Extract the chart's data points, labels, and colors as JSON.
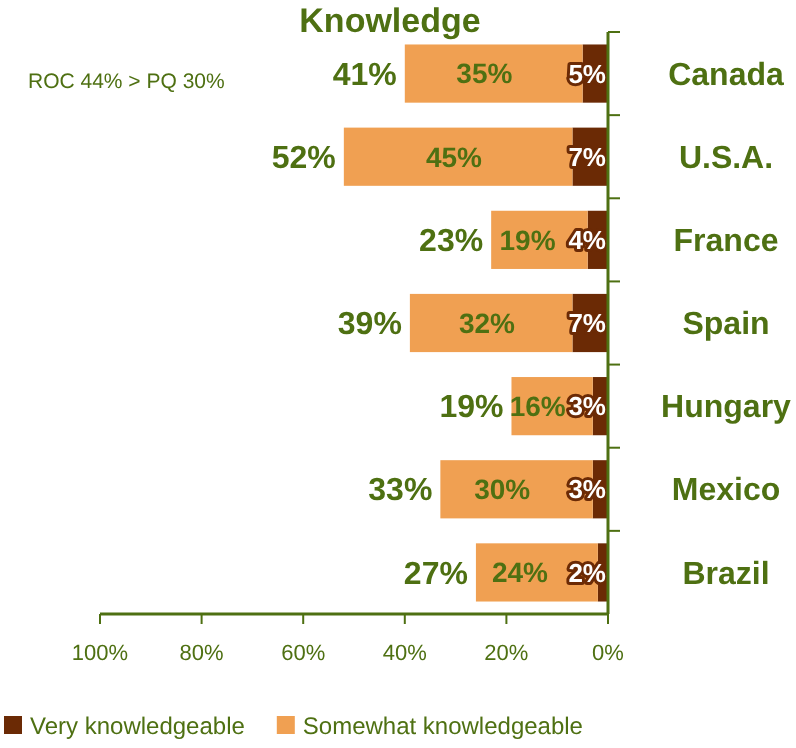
{
  "chart_data": {
    "type": "bar",
    "orientation": "horizontal",
    "stacked": true,
    "title": "Knowledge",
    "annotations": [
      "ROC 44% > PQ 30%"
    ],
    "categories": [
      "Canada",
      "U.S.A.",
      "France",
      "Spain",
      "Hungary",
      "Mexico",
      "Brazil"
    ],
    "series": [
      {
        "name": "Very knowledgeable",
        "color": "#6b2a05",
        "values": [
          5,
          7,
          4,
          7,
          3,
          3,
          2
        ],
        "value_labels": [
          "5%",
          "7%",
          "4%",
          "7%",
          "3%",
          "3%",
          "2%"
        ]
      },
      {
        "name": "Somewhat knowledgeable",
        "color": "#f0a052",
        "values": [
          35,
          45,
          19,
          32,
          16,
          30,
          24
        ],
        "value_labels": [
          "35%",
          "45%",
          "19%",
          "32%",
          "16%",
          "30%",
          "24%"
        ]
      }
    ],
    "totals": [
      "41%",
      "52%",
      "23%",
      "39%",
      "19%",
      "33%",
      "27%"
    ],
    "xlim": [
      100,
      0
    ],
    "xticks": [
      {
        "value": 100,
        "label": "100%"
      },
      {
        "value": 80,
        "label": "80%"
      },
      {
        "value": 60,
        "label": "60%"
      },
      {
        "value": 40,
        "label": "40%"
      },
      {
        "value": 20,
        "label": "20%"
      },
      {
        "value": 0,
        "label": "0%"
      }
    ],
    "grid": false,
    "legend": "bottom"
  }
}
